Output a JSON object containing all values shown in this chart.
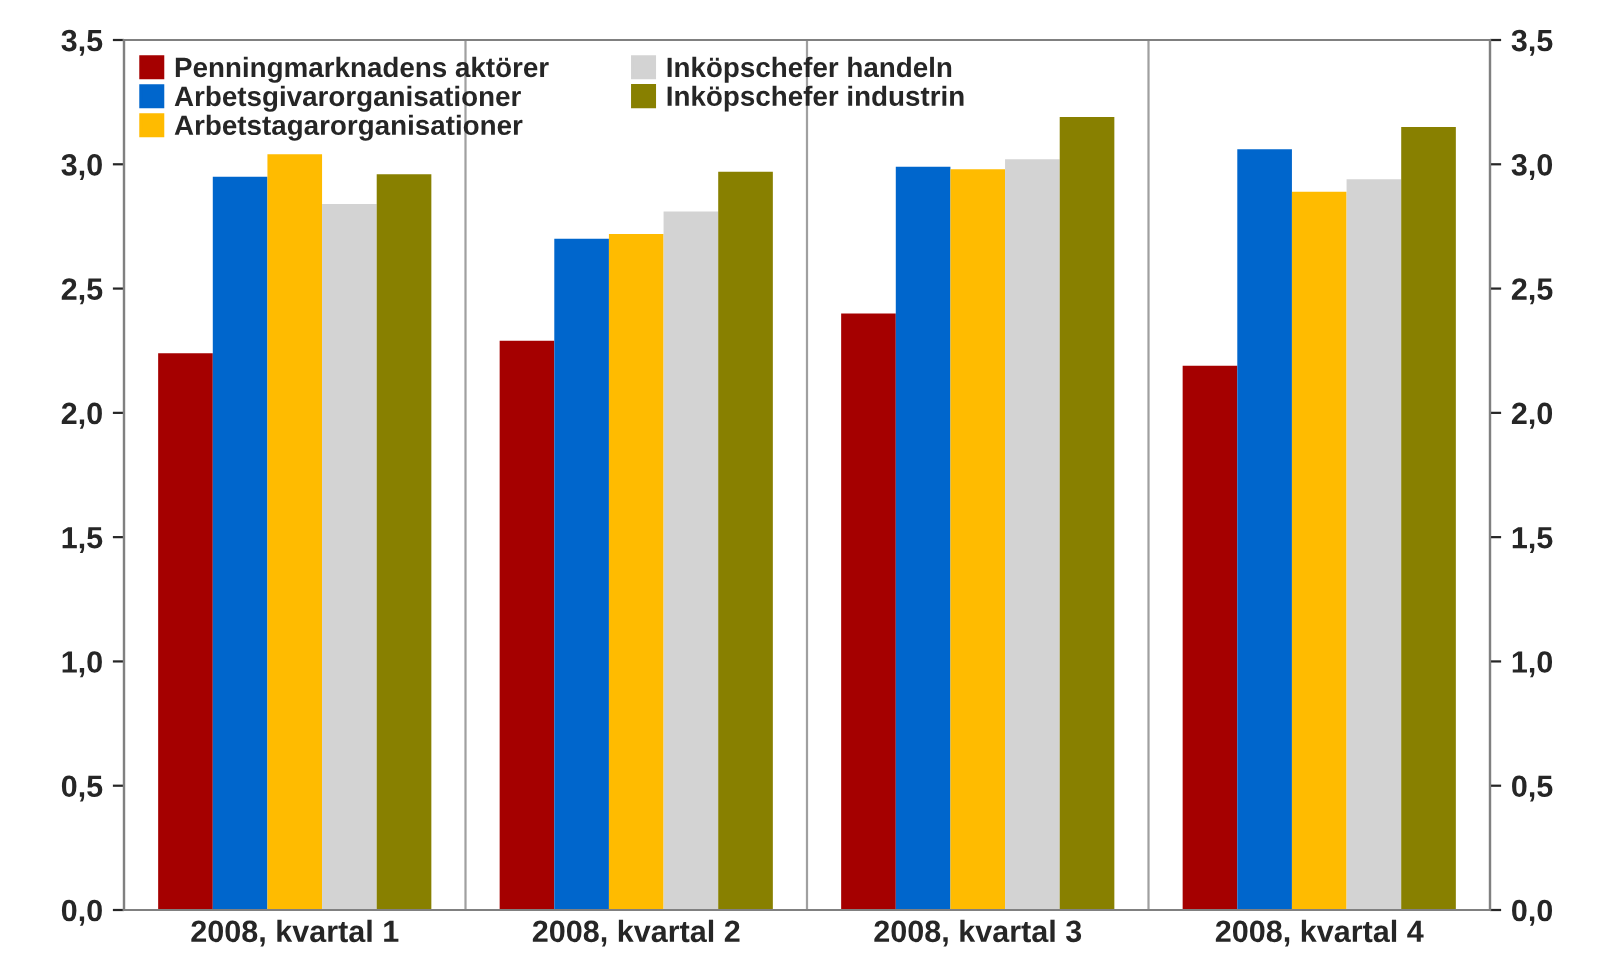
{
  "chart_data": {
    "type": "bar",
    "categories": [
      "2008, kvartal 1",
      "2008, kvartal 2",
      "2008, kvartal 3",
      "2008, kvartal 4"
    ],
    "series": [
      {
        "name": "Penningmarknadens aktörer",
        "color": "#a50000",
        "values": [
          2.24,
          2.29,
          2.4,
          2.19
        ]
      },
      {
        "name": "Arbetsgivarorganisationer",
        "color": "#0066cc",
        "values": [
          2.95,
          2.7,
          2.99,
          3.06
        ]
      },
      {
        "name": "Arbetstagarorganisationer",
        "color": "#ffbb00",
        "values": [
          3.04,
          2.72,
          2.98,
          2.89
        ]
      },
      {
        "name": "Inköpschefer handeln",
        "color": "#d3d3d3",
        "values": [
          2.84,
          2.81,
          3.02,
          2.94
        ]
      },
      {
        "name": "Inköpschefer industrin",
        "color": "#888000",
        "values": [
          2.96,
          2.97,
          3.19,
          3.15
        ]
      }
    ],
    "ylim": [
      0,
      3.5
    ],
    "yticks": [
      {
        "value": 0,
        "label": "0,0"
      },
      {
        "value": 0.5,
        "label": "0,5"
      },
      {
        "value": 1,
        "label": "1,0"
      },
      {
        "value": 1.5,
        "label": "1,5"
      },
      {
        "value": 2,
        "label": "2,0"
      },
      {
        "value": 2.5,
        "label": "2,5"
      },
      {
        "value": 3,
        "label": "3,0"
      },
      {
        "value": 3.5,
        "label": "3,5"
      }
    ],
    "y2lim": [
      0,
      3.5
    ],
    "y2ticks": [
      {
        "value": 0,
        "label": "0,0"
      },
      {
        "value": 0.5,
        "label": "0,5"
      },
      {
        "value": 1,
        "label": "1,0"
      },
      {
        "value": 1.5,
        "label": "1,5"
      },
      {
        "value": 2,
        "label": "2,0"
      },
      {
        "value": 2.5,
        "label": "2,5"
      },
      {
        "value": 3,
        "label": "3,0"
      },
      {
        "value": 3.5,
        "label": "3,5"
      }
    ],
    "grid": "x",
    "legend": "top left"
  }
}
